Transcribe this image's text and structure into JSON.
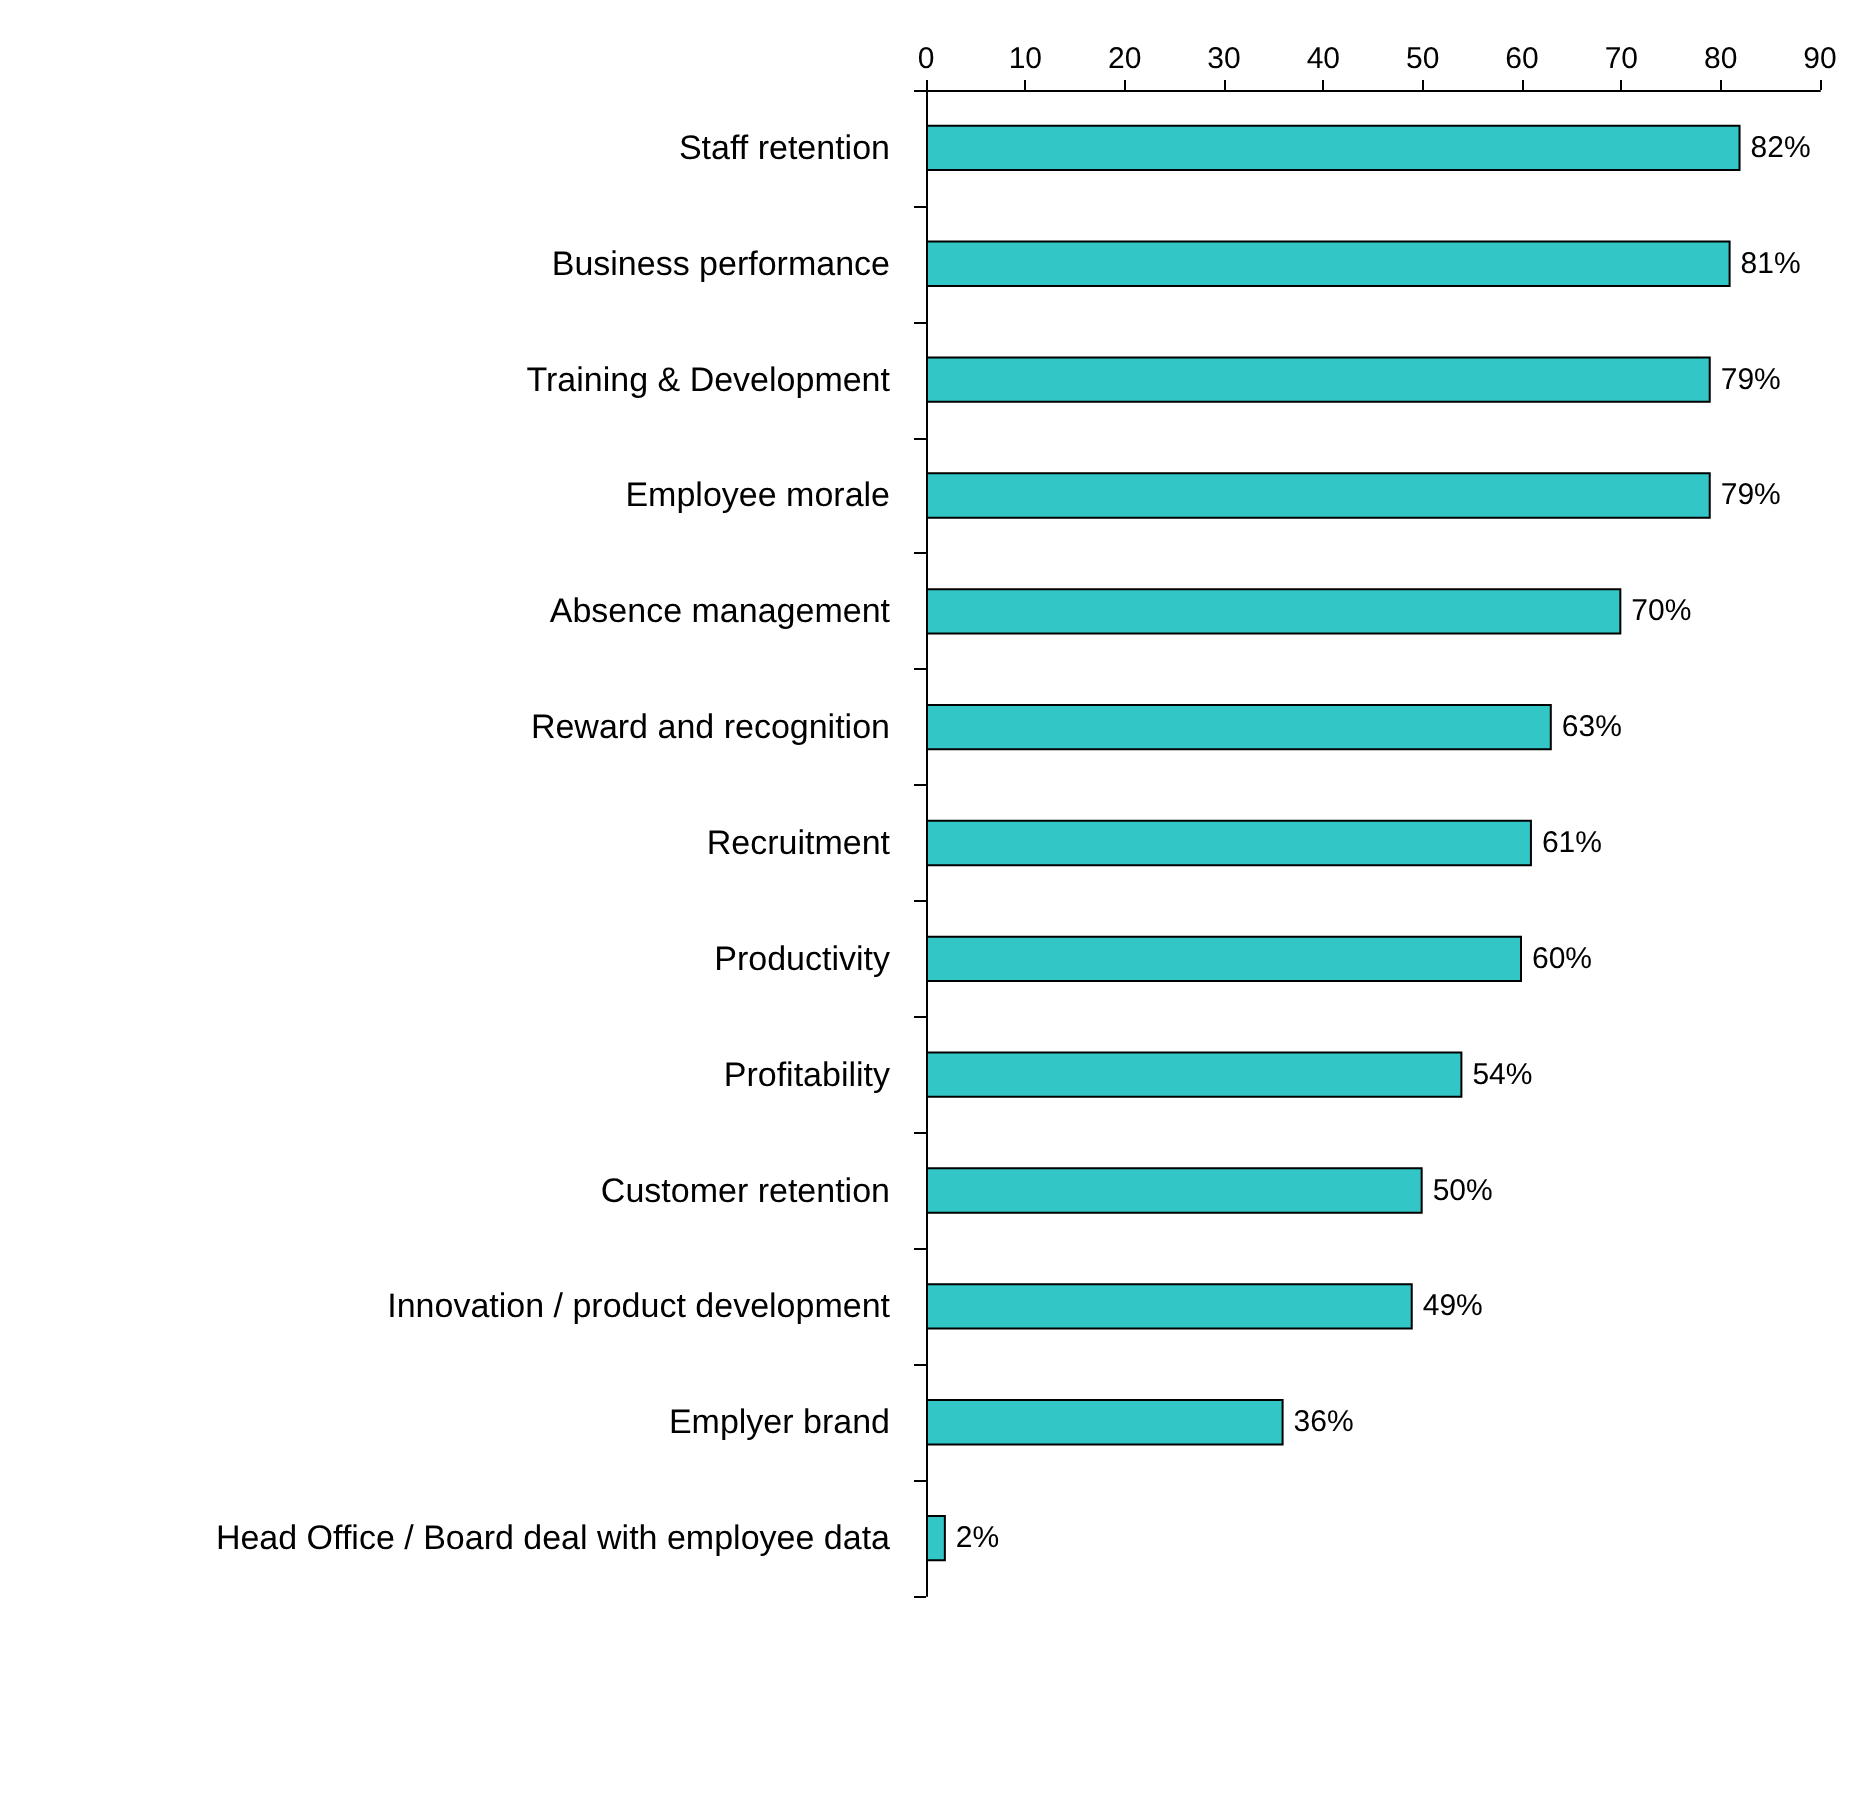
{
  "chart_data": {
    "type": "bar",
    "orientation": "horizontal",
    "categories": [
      "Staff retention",
      "Business performance",
      "Training & Development",
      "Employee morale",
      "Absence management",
      "Reward and recognition",
      "Recruitment",
      "Productivity",
      "Profitability",
      "Customer retention",
      "Innovation / product development",
      "Emplyer brand",
      "Head Office / Board deal with employee data"
    ],
    "values": [
      82,
      81,
      79,
      79,
      70,
      63,
      61,
      60,
      54,
      50,
      49,
      36,
      2
    ],
    "value_labels": [
      "82%",
      "81%",
      "79%",
      "79%",
      "70%",
      "63%",
      "61%",
      "60%",
      "54%",
      "50%",
      "49%",
      "36%",
      "2%"
    ],
    "color": "#33c6c6",
    "xlim": [
      0,
      90
    ],
    "xticks": [
      0,
      10,
      20,
      30,
      40,
      50,
      60,
      70,
      80,
      90
    ],
    "grid": false
  }
}
